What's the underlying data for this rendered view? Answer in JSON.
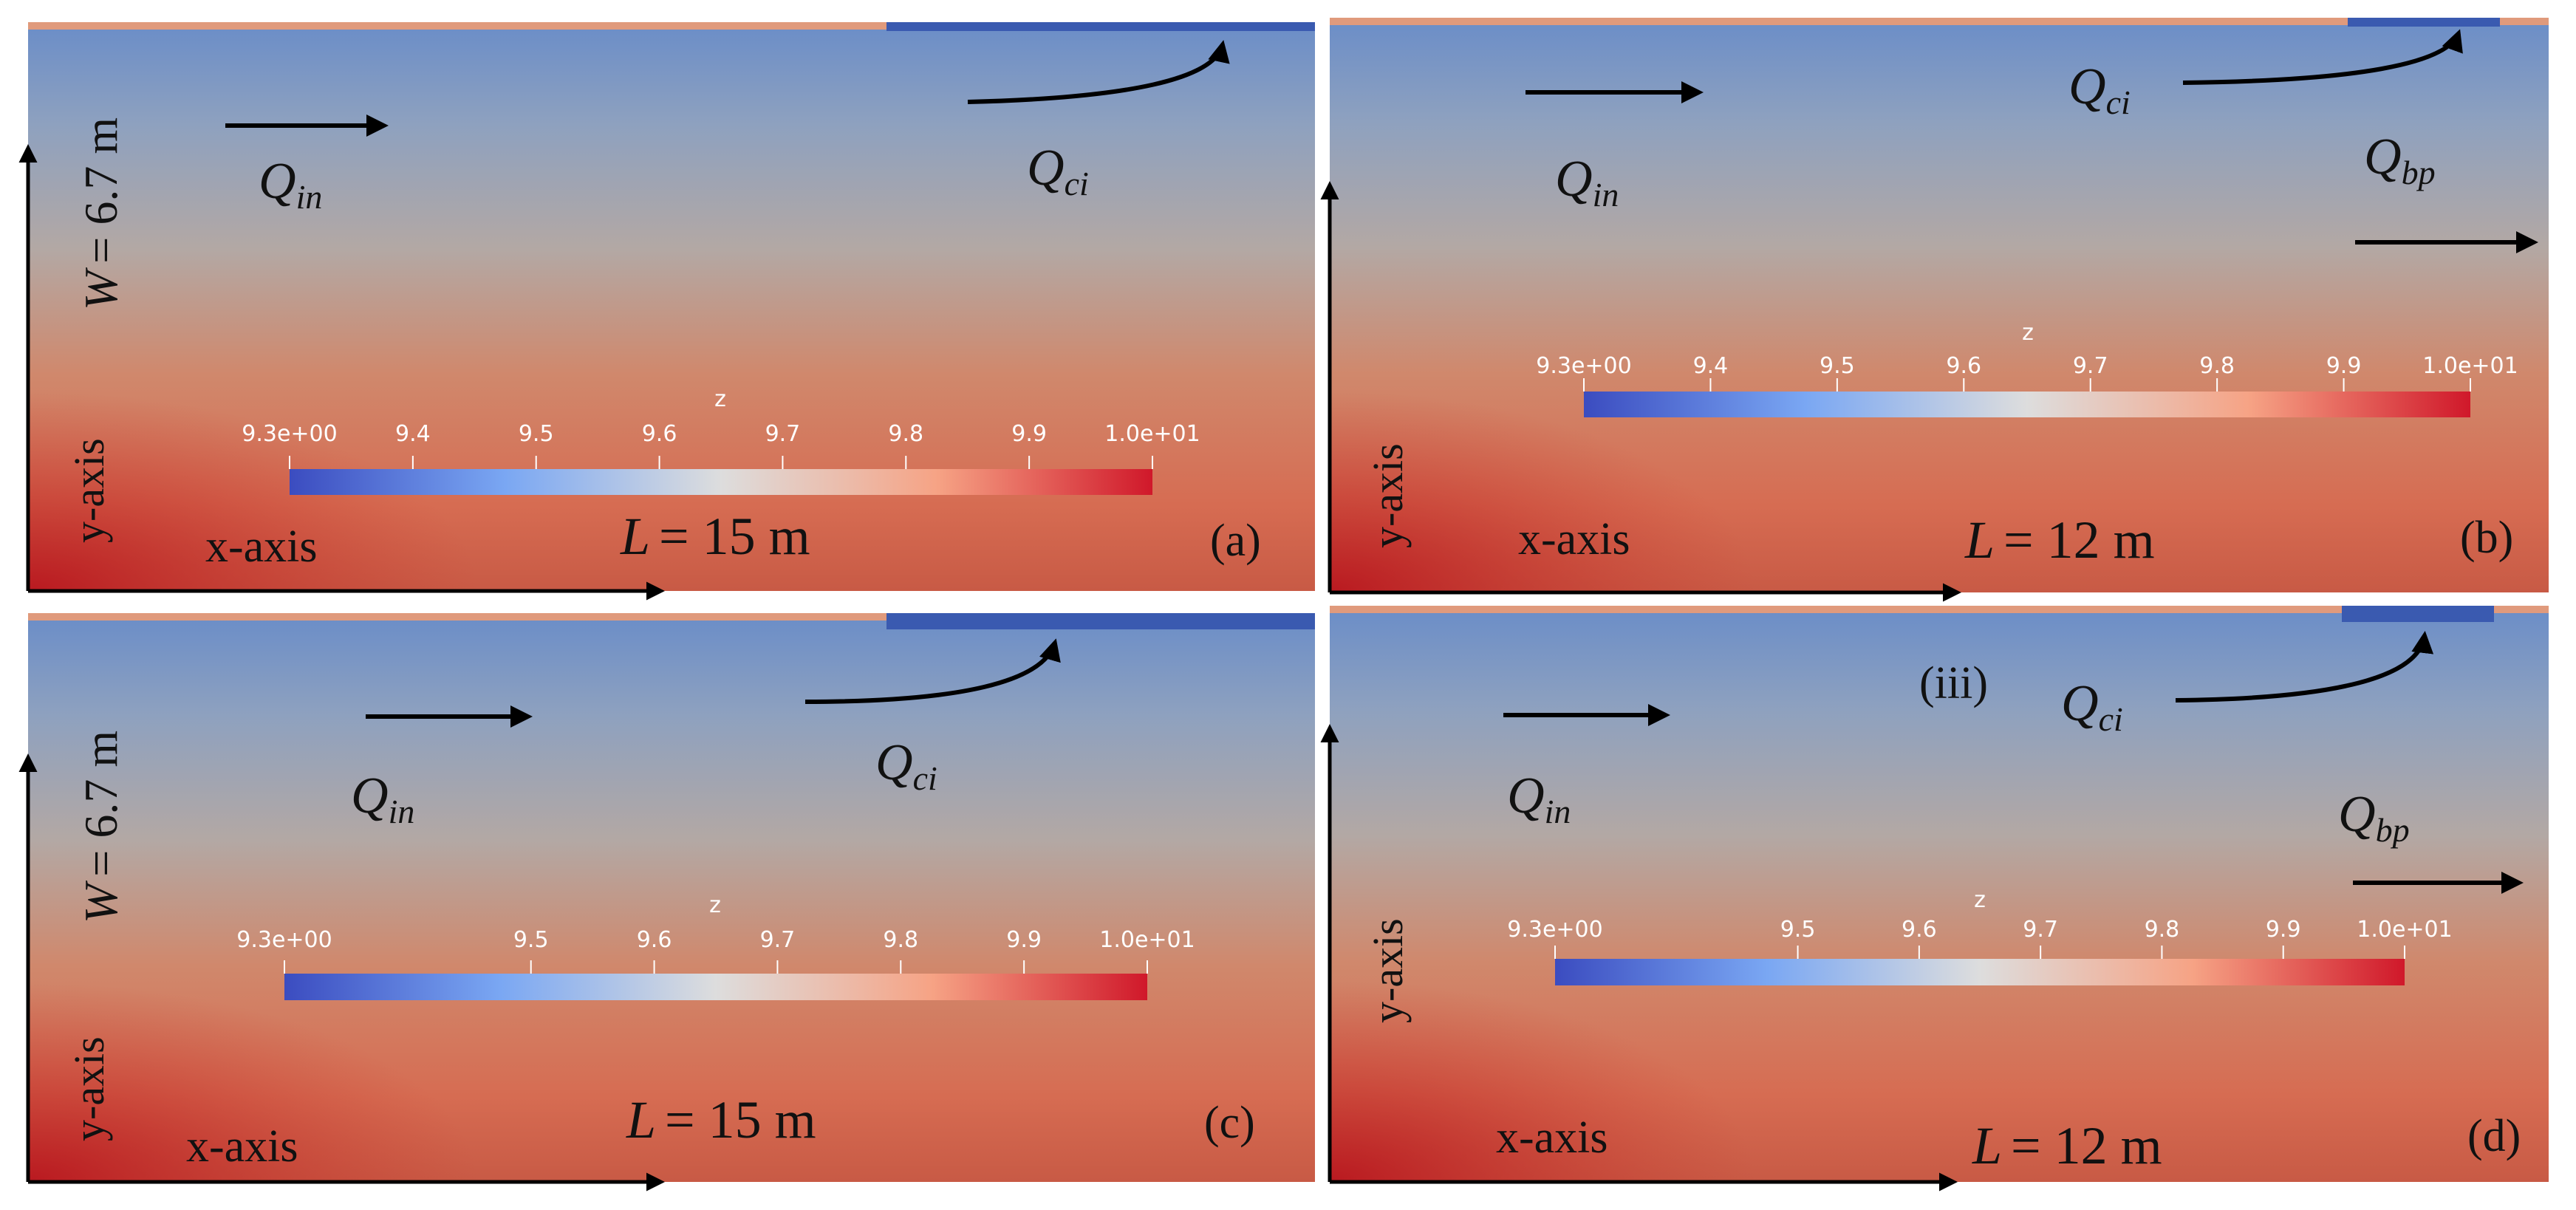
{
  "colorbar_palette": {
    "low": "#3b4cc0",
    "mid": "#dddddd",
    "high": "#d0182a"
  },
  "field_colors": {
    "top": "#6d8fc8",
    "middle": "#b3a8a4",
    "lower": "#d67a5c",
    "bottom": "#c2241a",
    "boundary_blue": "#3a5ab0",
    "boundary_salmon": "#e09a7c"
  },
  "panels": {
    "a": {
      "panel_label": "(a)",
      "length_text": "= 15 m",
      "width_text": "= 6.7 m",
      "x_axis": "x-axis",
      "y_axis": "y-axis",
      "colorbar": {
        "title": "z",
        "ticks": [
          "9.3e+00",
          "9.4",
          "9.5",
          "9.6",
          "9.7",
          "9.8",
          "9.9",
          "1.0e+01"
        ]
      }
    },
    "b": {
      "panel_label": "(b)",
      "length_text": "= 12 m",
      "x_axis": "x-axis",
      "y_axis": "y-axis",
      "colorbar": {
        "title": "z",
        "ticks": [
          "9.3e+00",
          "9.4",
          "9.5",
          "9.6",
          "9.7",
          "9.8",
          "9.9",
          "1.0e+01"
        ]
      }
    },
    "c": {
      "panel_label": "(c)",
      "length_text": "= 15 m",
      "width_text": "= 6.7 m",
      "x_axis": "x-axis",
      "y_axis": "y-axis",
      "colorbar": {
        "title": "z",
        "ticks": [
          "9.3e+00",
          "9.5",
          "9.6",
          "9.7",
          "9.8",
          "9.9",
          "1.0e+01"
        ]
      }
    },
    "d": {
      "panel_label": "(d)",
      "length_text": "= 12 m",
      "x_axis": "x-axis",
      "y_axis": "y-axis",
      "annotation": "(iii)",
      "colorbar": {
        "title": "z",
        "ticks": [
          "9.3e+00",
          "9.5",
          "9.6",
          "9.7",
          "9.8",
          "9.9",
          "1.0e+01"
        ]
      }
    }
  },
  "symbols": {
    "Q": "Q",
    "in": "in",
    "ci": "ci",
    "bp": "bp",
    "L": "L",
    "W": "W"
  }
}
